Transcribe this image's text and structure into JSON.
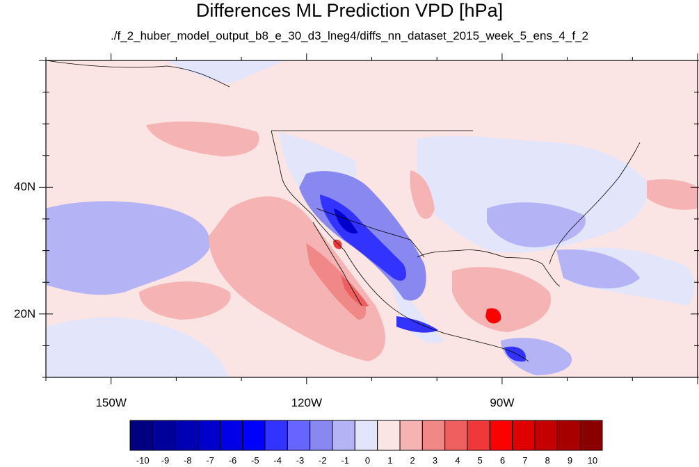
{
  "title": "Differences ML Prediction VPD [hPa]",
  "subtitle": "./f_2_huber_model_output_b8_e_30_d3_lneg4/diffs_nn_dataset_2015_week_5_ens_4_f_2",
  "map": {
    "lat_ticks": [
      {
        "value": 40,
        "label": "40N"
      },
      {
        "value": 20,
        "label": "20N"
      }
    ],
    "lon_ticks": [
      {
        "value": -150,
        "label": "150W"
      },
      {
        "value": -120,
        "label": "120W"
      },
      {
        "value": -90,
        "label": "90W"
      }
    ],
    "lon_range": [
      -160,
      -60
    ],
    "lat_range": [
      10,
      60
    ]
  },
  "colorbar": {
    "labels": [
      "-10",
      "-9",
      "-8",
      "-7",
      "-6",
      "-5",
      "-4",
      "-3",
      "-2",
      "-1",
      "0",
      "1",
      "2",
      "3",
      "4",
      "5",
      "6",
      "7",
      "8",
      "9",
      "10"
    ],
    "colors": [
      "#000080",
      "#00009a",
      "#0000b4",
      "#0000cd",
      "#0000e6",
      "#0000ff",
      "#3333ff",
      "#6666ff",
      "#8888f0",
      "#b3b3f5",
      "#e3e6fb",
      "#fbe4e4",
      "#f6b3b3",
      "#f08888",
      "#ee6060",
      "#f03838",
      "#ff0000",
      "#e00000",
      "#c40000",
      "#a80000",
      "#8a0000"
    ]
  }
}
